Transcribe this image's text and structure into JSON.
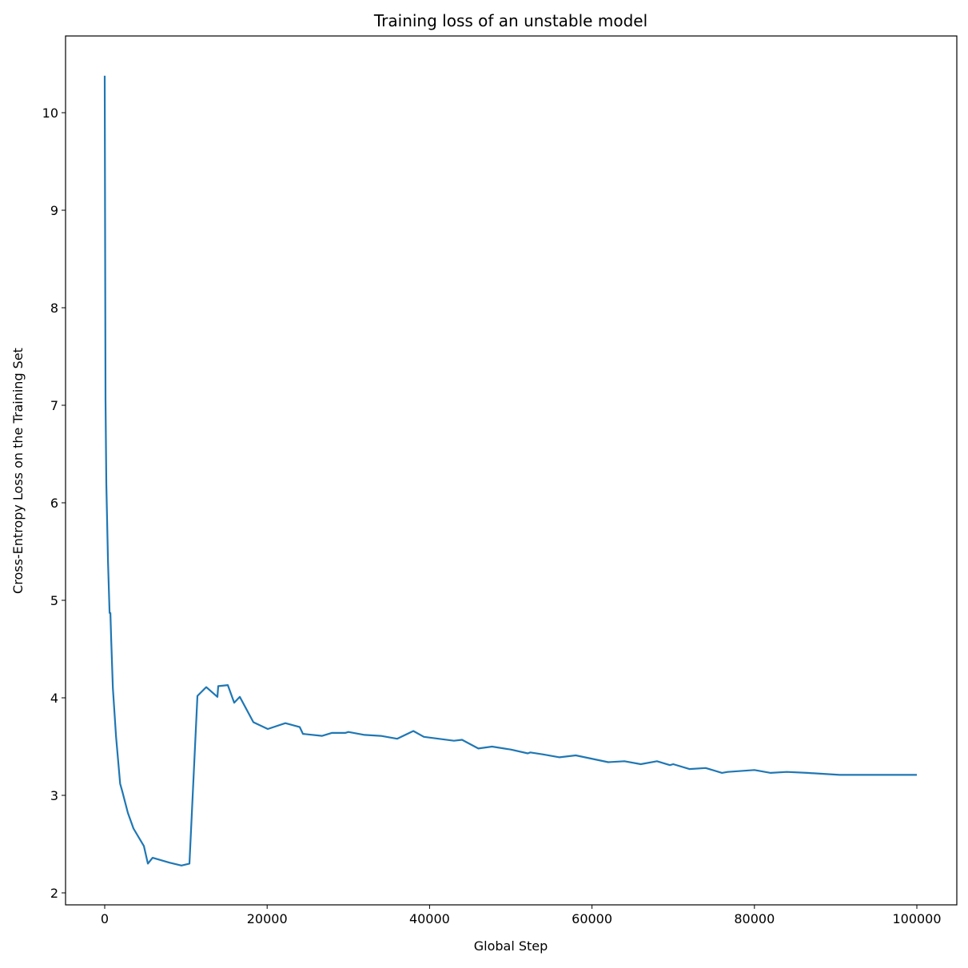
{
  "chart_data": {
    "type": "line",
    "title": "Training loss of an unstable model",
    "xlabel": "Global Step",
    "ylabel": "Cross-Entropy Loss on the Training Set",
    "xlim": [
      -4823,
      104921
    ],
    "ylim": [
      1.877,
      10.787
    ],
    "xticks": [
      0,
      20000,
      40000,
      60000,
      80000,
      100000
    ],
    "xtick_labels": [
      "0",
      "20000",
      "40000",
      "60000",
      "80000",
      "100000"
    ],
    "yticks": [
      2,
      3,
      4,
      5,
      6,
      7,
      8,
      9,
      10
    ],
    "ytick_labels": [
      "2",
      "3",
      "4",
      "5",
      "6",
      "7",
      "8",
      "9",
      "10"
    ],
    "grid": false,
    "line_color": "#1f77b4",
    "series": [
      {
        "x": [
          0,
          100,
          200,
          400,
          600,
          700,
          800,
          1000,
          1400,
          1900,
          2170,
          2850,
          3540,
          4820,
          5310,
          5900,
          7970,
          9450,
          10430,
          11420,
          12500,
          13880,
          13980,
          15160,
          15940,
          16630,
          18310,
          20080,
          22240,
          24020,
          24410,
          26770,
          27950,
          29630,
          30000,
          32000,
          34000,
          36000,
          38000,
          39300,
          43000,
          44000,
          46000,
          47700,
          50000,
          52100,
          52400,
          54000,
          56000,
          58000,
          62000,
          64000,
          66000,
          68000,
          69600,
          70000,
          72000,
          74000,
          76000,
          76700,
          80000,
          82000,
          84000,
          86500,
          90500,
          93700,
          96000,
          98000,
          100000
        ],
        "y": [
          10.38,
          7.06,
          6.2,
          5.4,
          4.87,
          4.87,
          4.6,
          4.1,
          3.6,
          3.12,
          3.04,
          2.82,
          2.66,
          2.48,
          2.3,
          2.36,
          2.31,
          2.28,
          2.3,
          4.02,
          4.11,
          4.01,
          4.12,
          4.13,
          3.95,
          4.01,
          3.75,
          3.68,
          3.74,
          3.7,
          3.63,
          3.61,
          3.64,
          3.64,
          3.65,
          3.62,
          3.61,
          3.58,
          3.66,
          3.6,
          3.56,
          3.57,
          3.48,
          3.5,
          3.47,
          3.43,
          3.44,
          3.42,
          3.39,
          3.41,
          3.34,
          3.35,
          3.32,
          3.35,
          3.31,
          3.32,
          3.27,
          3.28,
          3.23,
          3.24,
          3.26,
          3.23,
          3.24,
          3.23,
          3.21,
          3.21,
          3.21,
          3.21,
          3.21
        ]
      }
    ]
  }
}
